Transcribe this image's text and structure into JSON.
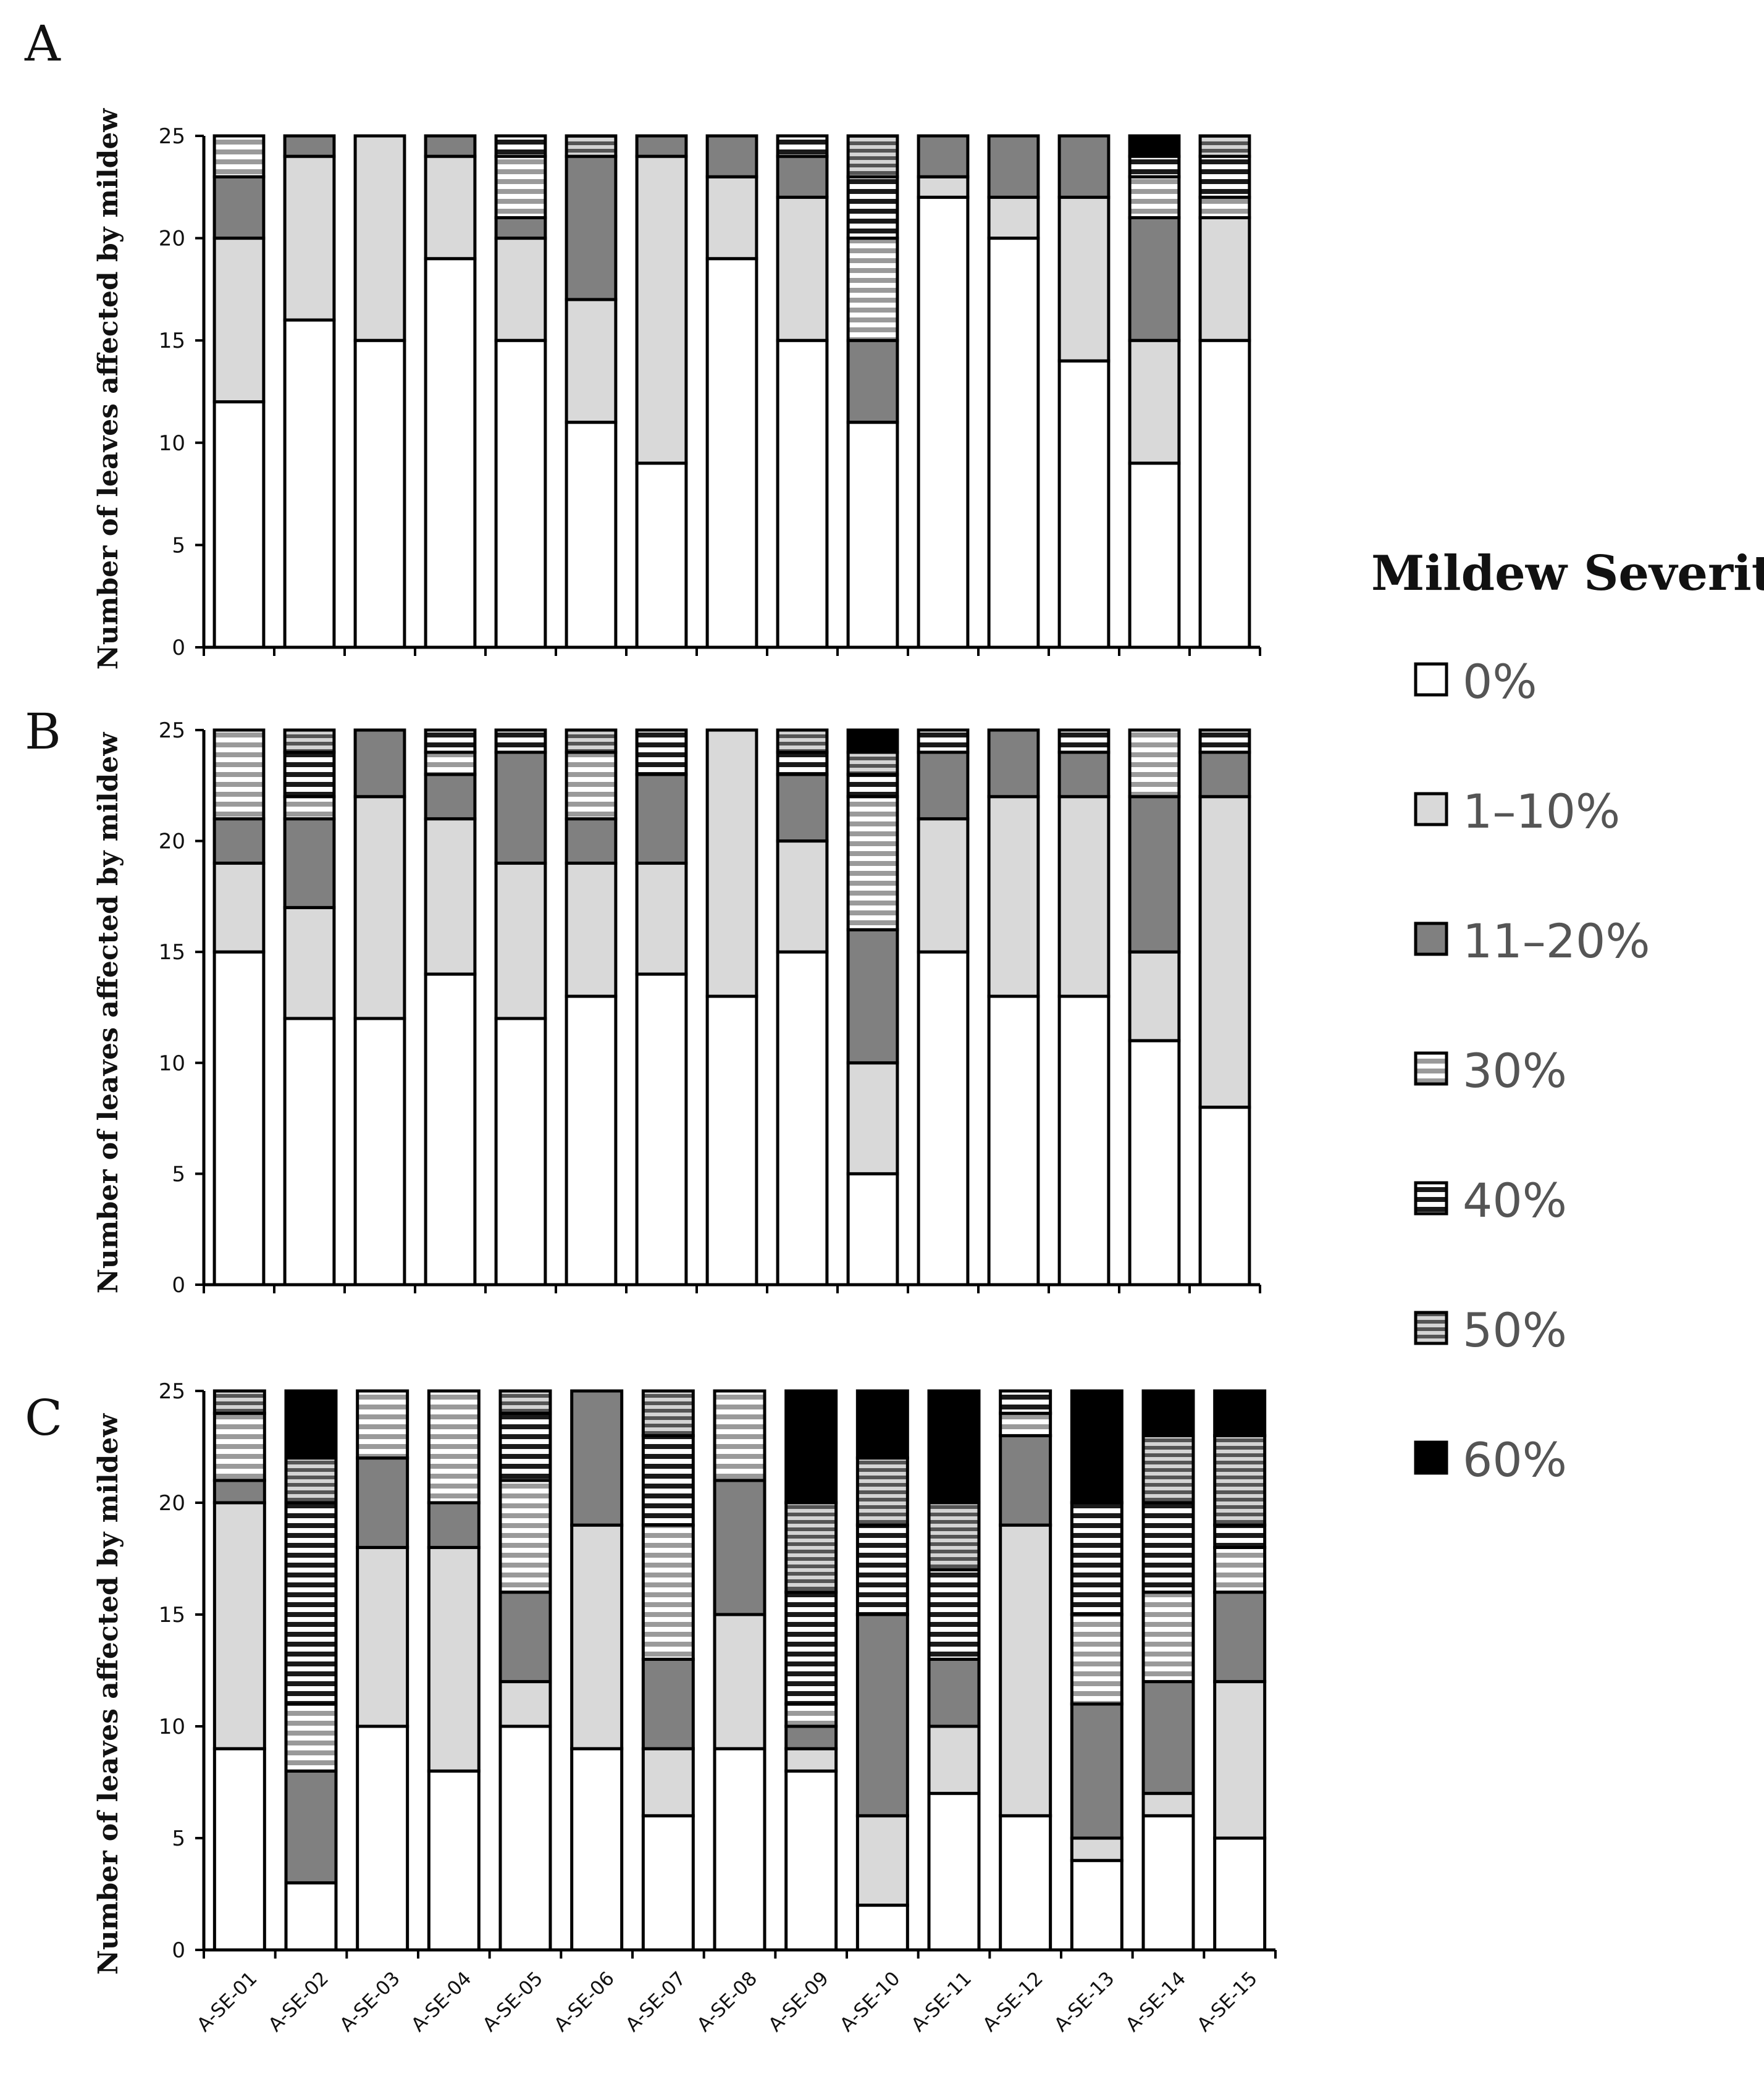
{
  "legend": {
    "title": "Mildew Severity",
    "items": [
      {
        "label": "0%",
        "pattern": "white"
      },
      {
        "label": "1–10%",
        "pattern": "lightgray"
      },
      {
        "label": "11–20%",
        "pattern": "darkgray"
      },
      {
        "label": "30%",
        "pattern": "stripes-gray"
      },
      {
        "label": "40%",
        "pattern": "stripes-black"
      },
      {
        "label": "50%",
        "pattern": "stripes-dark"
      },
      {
        "label": "60%",
        "pattern": "black"
      }
    ]
  },
  "colors": {
    "c0": "#ffffff",
    "c1": "#d9d9d9",
    "c2": "#808080",
    "c3_stripe": "#999999",
    "c4_stripe": "#222222",
    "c5_stripe": "#555555",
    "c6": "#000000",
    "outline": "#000000"
  },
  "chart_data": [
    {
      "panel": "A",
      "type": "bar",
      "stacked": true,
      "ylabel": "Number of leaves affected by mildew",
      "ylim": [
        0,
        25
      ],
      "yticks": [
        0,
        5,
        10,
        15,
        20,
        25
      ],
      "categories": [
        "A-SE-01",
        "A-SE-02",
        "A-SE-03",
        "A-SE-04",
        "A-SE-05",
        "A-SE-06",
        "A-SE-07",
        "A-SE-08",
        "A-SE-09",
        "A-SE-10",
        "A-SE-11",
        "A-SE-12",
        "A-SE-13",
        "A-SE-14",
        "A-SE-15"
      ],
      "series": [
        {
          "name": "0%",
          "values": [
            12,
            16,
            15,
            19,
            15,
            11,
            9,
            19,
            15,
            11,
            22,
            20,
            14,
            9,
            15
          ]
        },
        {
          "name": "1–10%",
          "values": [
            8,
            8,
            10,
            5,
            5,
            6,
            15,
            4,
            7,
            0,
            1,
            2,
            8,
            6,
            6
          ]
        },
        {
          "name": "11–20%",
          "values": [
            3,
            1,
            0,
            1,
            1,
            7,
            1,
            2,
            2,
            4,
            2,
            3,
            3,
            6,
            0
          ]
        },
        {
          "name": "30%",
          "values": [
            2,
            0,
            0,
            0,
            3,
            0,
            0,
            0,
            0,
            5,
            0,
            0,
            0,
            2,
            1
          ]
        },
        {
          "name": "40%",
          "values": [
            0,
            0,
            0,
            0,
            1,
            0,
            0,
            0,
            1,
            3,
            0,
            0,
            0,
            1,
            2
          ]
        },
        {
          "name": "50%",
          "values": [
            0,
            0,
            0,
            0,
            0,
            1,
            0,
            0,
            0,
            2,
            0,
            0,
            0,
            0,
            1
          ]
        },
        {
          "name": "60%",
          "values": [
            0,
            0,
            0,
            0,
            0,
            0,
            0,
            0,
            0,
            0,
            0,
            0,
            0,
            1,
            0
          ]
        }
      ]
    },
    {
      "panel": "B",
      "type": "bar",
      "stacked": true,
      "ylabel": "Number of leaves affected by mildew",
      "ylim": [
        0,
        25
      ],
      "yticks": [
        0,
        5,
        10,
        15,
        20,
        25
      ],
      "categories": [
        "A-SE-01",
        "A-SE-02",
        "A-SE-03",
        "A-SE-04",
        "A-SE-05",
        "A-SE-06",
        "A-SE-07",
        "A-SE-08",
        "A-SE-09",
        "A-SE-10",
        "A-SE-11",
        "A-SE-12",
        "A-SE-13",
        "A-SE-14",
        "A-SE-15"
      ],
      "series": [
        {
          "name": "0%",
          "values": [
            15,
            12,
            12,
            14,
            12,
            13,
            14,
            13,
            15,
            5,
            15,
            13,
            13,
            11,
            8
          ]
        },
        {
          "name": "1–10%",
          "values": [
            4,
            5,
            10,
            7,
            7,
            6,
            5,
            12,
            5,
            5,
            6,
            9,
            9,
            4,
            14
          ]
        },
        {
          "name": "11–20%",
          "values": [
            2,
            4,
            3,
            2,
            5,
            2,
            4,
            0,
            3,
            6,
            3,
            3,
            2,
            7,
            2
          ]
        },
        {
          "name": "30%",
          "values": [
            4,
            1,
            0,
            1,
            0,
            3,
            0,
            0,
            0,
            6,
            0,
            0,
            0,
            3,
            0
          ]
        },
        {
          "name": "40%",
          "values": [
            0,
            2,
            0,
            1,
            1,
            0,
            2,
            0,
            1,
            1,
            1,
            0,
            1,
            0,
            1
          ]
        },
        {
          "name": "50%",
          "values": [
            0,
            1,
            0,
            0,
            0,
            1,
            0,
            0,
            1,
            1,
            0,
            0,
            0,
            0,
            0
          ]
        },
        {
          "name": "60%",
          "values": [
            0,
            0,
            0,
            0,
            0,
            0,
            0,
            0,
            0,
            1,
            0,
            0,
            0,
            0,
            0
          ]
        }
      ]
    },
    {
      "panel": "C",
      "type": "bar",
      "stacked": true,
      "ylabel": "Number of leaves affected by mildew",
      "ylim": [
        0,
        25
      ],
      "yticks": [
        0,
        5,
        10,
        15,
        20,
        25
      ],
      "categories": [
        "A-SE-01",
        "A-SE-02",
        "A-SE-03",
        "A-SE-04",
        "A-SE-05",
        "A-SE-06",
        "A-SE-07",
        "A-SE-08",
        "A-SE-09",
        "A-SE-10",
        "A-SE-11",
        "A-SE-12",
        "A-SE-13",
        "A-SE-14",
        "A-SE-15"
      ],
      "series": [
        {
          "name": "0%",
          "values": [
            9,
            3,
            10,
            8,
            10,
            9,
            6,
            9,
            8,
            2,
            7,
            6,
            4,
            6,
            5
          ]
        },
        {
          "name": "1–10%",
          "values": [
            11,
            0,
            8,
            10,
            2,
            10,
            3,
            6,
            1,
            4,
            3,
            13,
            1,
            1,
            7
          ]
        },
        {
          "name": "11–20%",
          "values": [
            1,
            5,
            4,
            2,
            4,
            6,
            4,
            6,
            1,
            9,
            3,
            4,
            6,
            5,
            4
          ]
        },
        {
          "name": "30%",
          "values": [
            3,
            3,
            3,
            5,
            5,
            0,
            6,
            4,
            1,
            0,
            0,
            1,
            4,
            4,
            2
          ]
        },
        {
          "name": "40%",
          "values": [
            0,
            9,
            0,
            0,
            3,
            0,
            4,
            0,
            5,
            4,
            4,
            1,
            5,
            4,
            1
          ]
        },
        {
          "name": "50%",
          "values": [
            1,
            2,
            0,
            0,
            1,
            0,
            2,
            0,
            4,
            3,
            3,
            0,
            0,
            3,
            4
          ]
        },
        {
          "name": "60%",
          "values": [
            0,
            3,
            0,
            0,
            0,
            0,
            0,
            0,
            5,
            3,
            5,
            0,
            5,
            2,
            2
          ]
        }
      ]
    }
  ]
}
